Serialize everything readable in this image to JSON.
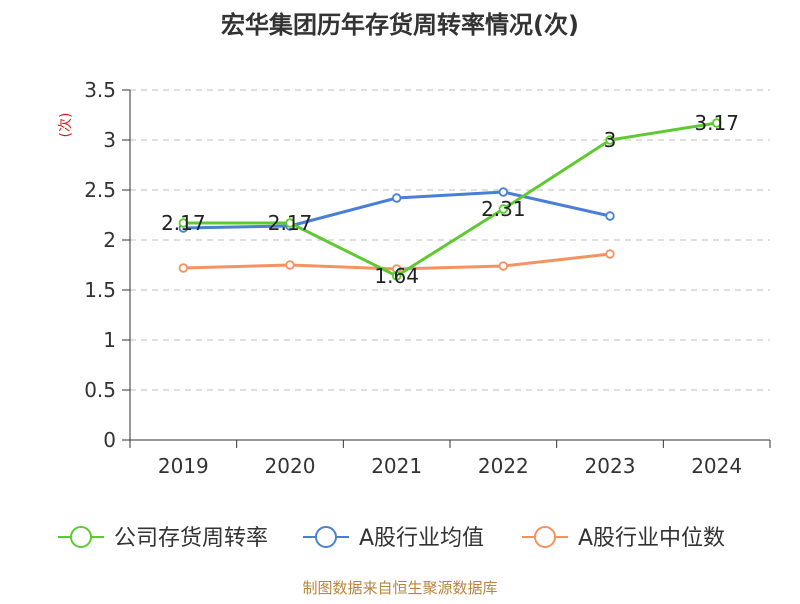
{
  "chart_data": {
    "type": "line",
    "title": "宏华集团历年存货周转率情况(次)",
    "ylabel": "(次)",
    "categories": [
      "2019",
      "2020",
      "2021",
      "2022",
      "2023",
      "2024"
    ],
    "ylim": [
      0,
      3.5
    ],
    "yticks": [
      "0",
      "0.5",
      "1",
      "1.5",
      "2",
      "2.5",
      "3",
      "3.5"
    ],
    "grid": true,
    "legend_position": "bottom",
    "series": [
      {
        "name": "公司存货周转率",
        "color": "#5fc932",
        "values": [
          2.17,
          2.17,
          1.64,
          2.31,
          3,
          3.17
        ],
        "labels": [
          "2.17",
          "2.17",
          "1.64",
          "2.31",
          "3",
          "3.17"
        ]
      },
      {
        "name": "A股行业均值",
        "color": "#4a7fd6",
        "values": [
          2.12,
          2.14,
          2.42,
          2.48,
          2.24,
          null
        ]
      },
      {
        "name": "A股行业中位数",
        "color": "#f5925f",
        "values": [
          1.72,
          1.75,
          1.71,
          1.74,
          1.86,
          null
        ]
      }
    ],
    "source": "制图数据来自恒生聚源数据库"
  }
}
